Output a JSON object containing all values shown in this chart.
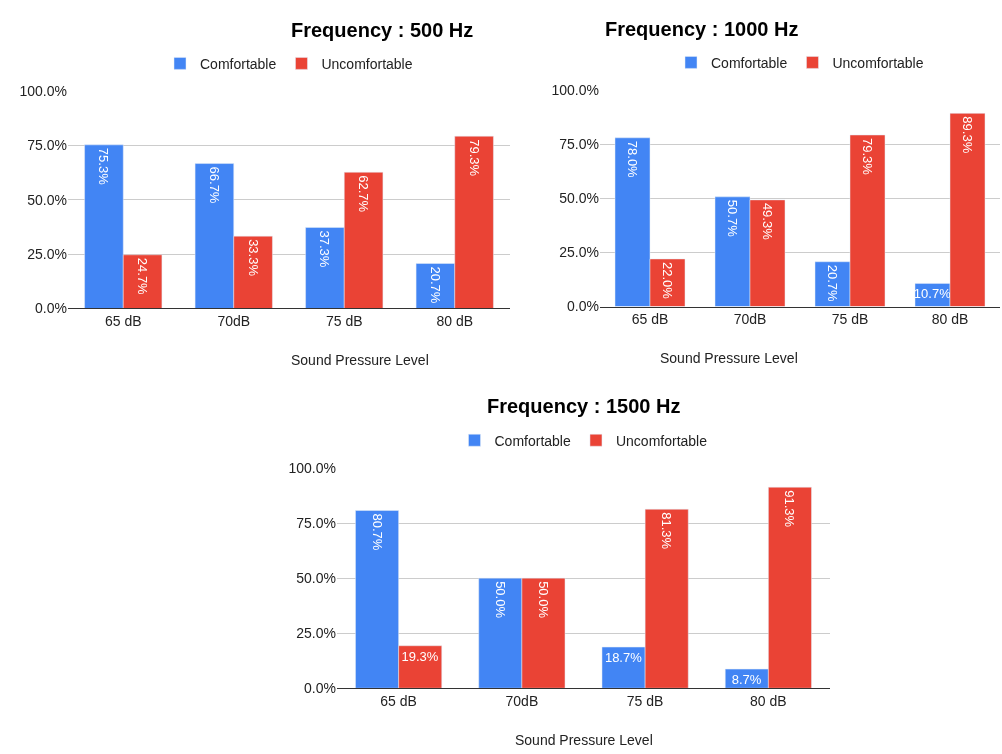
{
  "chart_data": [
    {
      "type": "bar",
      "title": "Frequency : 500 Hz",
      "xlabel": "Sound Pressure Level",
      "categories": [
        "65 dB",
        "70dB",
        "75 dB",
        "80 dB"
      ],
      "series": [
        {
          "name": "Comfortable",
          "color": "#4285f4",
          "values": [
            75.3,
            66.7,
            37.3,
            20.7
          ],
          "value_labels": [
            "75.3%",
            "66.7%",
            "37.3%",
            "20.7%"
          ]
        },
        {
          "name": "Uncomfortable",
          "color": "#ea4335",
          "values": [
            24.7,
            33.3,
            62.7,
            79.3
          ],
          "value_labels": [
            "24.7%",
            "33.3%",
            "62.7%",
            "79.3%"
          ]
        }
      ],
      "ylim": [
        0,
        100
      ],
      "yticks": [
        {
          "value": 0,
          "label": "0.0%"
        },
        {
          "value": 25,
          "label": "25.0%"
        },
        {
          "value": 50,
          "label": "50.0%"
        },
        {
          "value": 75,
          "label": "75.0%"
        },
        {
          "value": 100,
          "label": "100.0%"
        }
      ],
      "grid": "y",
      "legend": "top"
    },
    {
      "type": "bar",
      "title": "Frequency : 1000 Hz",
      "xlabel": "Sound Pressure Level",
      "categories": [
        "65 dB",
        "70dB",
        "75 dB",
        "80 dB"
      ],
      "series": [
        {
          "name": "Comfortable",
          "color": "#4285f4",
          "values": [
            78.0,
            50.7,
            20.7,
            10.7
          ],
          "value_labels": [
            "78.0%",
            "50.7%",
            "20.7%",
            "10.7%"
          ]
        },
        {
          "name": "Uncomfortable",
          "color": "#ea4335",
          "values": [
            22.0,
            49.3,
            79.3,
            89.3
          ],
          "value_labels": [
            "22.0%",
            "49.3%",
            "79.3%",
            "89.3%"
          ]
        }
      ],
      "ylim": [
        0,
        100
      ],
      "yticks": [
        {
          "value": 0,
          "label": "0.0%"
        },
        {
          "value": 25,
          "label": "25.0%"
        },
        {
          "value": 50,
          "label": "50.0%"
        },
        {
          "value": 75,
          "label": "75.0%"
        },
        {
          "value": 100,
          "label": "100.0%"
        }
      ],
      "grid": "y",
      "legend": "top"
    },
    {
      "type": "bar",
      "title": "Frequency : 1500 Hz",
      "xlabel": "Sound Pressure Level",
      "categories": [
        "65 dB",
        "70dB",
        "75 dB",
        "80 dB"
      ],
      "series": [
        {
          "name": "Comfortable",
          "color": "#4285f4",
          "values": [
            80.7,
            50.0,
            18.7,
            8.7
          ],
          "value_labels": [
            "80.7%",
            "50.0%",
            "18.7%",
            "8.7%"
          ]
        },
        {
          "name": "Uncomfortable",
          "color": "#ea4335",
          "values": [
            19.3,
            50.0,
            81.3,
            91.3
          ],
          "value_labels": [
            "19.3%",
            "50.0%",
            "81.3%",
            "91.3%"
          ]
        }
      ],
      "ylim": [
        0,
        100
      ],
      "yticks": [
        {
          "value": 0,
          "label": "0.0%"
        },
        {
          "value": 25,
          "label": "25.0%"
        },
        {
          "value": 50,
          "label": "50.0%"
        },
        {
          "value": 75,
          "label": "75.0%"
        },
        {
          "value": 100,
          "label": "100.0%"
        }
      ],
      "grid": "y",
      "legend": "top"
    }
  ]
}
